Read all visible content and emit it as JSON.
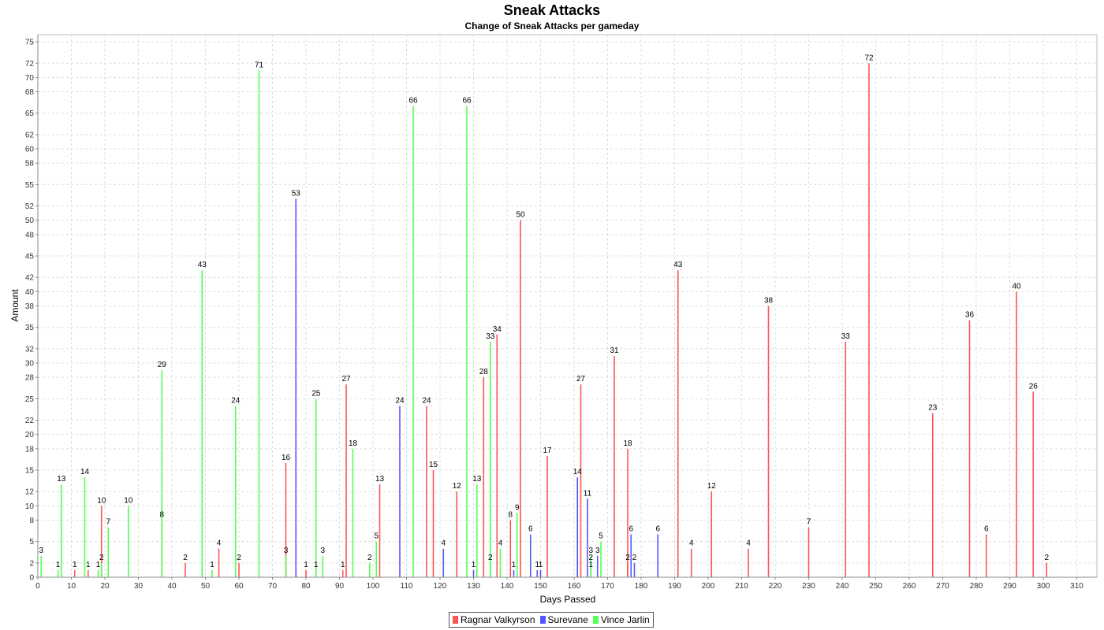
{
  "chart_data": {
    "type": "bar",
    "title": "Sneak Attacks",
    "subtitle": "Change of Sneak Attacks per gameday",
    "xlabel": "Days Passed",
    "ylabel": "Amount",
    "xlim": [
      0,
      316
    ],
    "ylim": [
      0,
      76
    ],
    "x_ticks": [
      0,
      10,
      20,
      30,
      40,
      50,
      60,
      70,
      80,
      90,
      100,
      110,
      120,
      130,
      140,
      150,
      160,
      170,
      180,
      190,
      200,
      210,
      220,
      230,
      240,
      250,
      260,
      270,
      280,
      290,
      300,
      310
    ],
    "y_ticks": [
      0,
      2,
      5,
      8,
      10,
      12,
      15,
      18,
      20,
      22,
      25,
      28,
      30,
      32,
      35,
      38,
      40,
      42,
      45,
      48,
      50,
      52,
      55,
      58,
      60,
      62,
      65,
      68,
      70,
      72,
      75
    ],
    "grid": true,
    "legend_position": "bottom",
    "series": [
      {
        "name": "Ragnar Valkyrson",
        "color": "#ff5555",
        "points": [
          [
            11,
            1
          ],
          [
            15,
            1
          ],
          [
            19,
            10
          ],
          [
            37,
            8
          ],
          [
            44,
            2
          ],
          [
            54,
            4
          ],
          [
            60,
            2
          ],
          [
            74,
            16
          ],
          [
            80,
            1
          ],
          [
            91,
            1
          ],
          [
            92,
            27
          ],
          [
            102,
            13
          ],
          [
            116,
            24
          ],
          [
            118,
            15
          ],
          [
            125,
            12
          ],
          [
            133,
            28
          ],
          [
            137,
            34
          ],
          [
            141,
            8
          ],
          [
            144,
            50
          ],
          [
            152,
            17
          ],
          [
            162,
            27
          ],
          [
            172,
            31
          ],
          [
            176,
            2
          ],
          [
            176,
            18
          ],
          [
            191,
            43
          ],
          [
            195,
            4
          ],
          [
            201,
            12
          ],
          [
            212,
            4
          ],
          [
            218,
            38
          ],
          [
            230,
            7
          ],
          [
            241,
            33
          ],
          [
            248,
            72
          ],
          [
            267,
            23
          ],
          [
            278,
            36
          ],
          [
            283,
            6
          ],
          [
            292,
            40
          ],
          [
            297,
            26
          ],
          [
            301,
            2
          ]
        ]
      },
      {
        "name": "Surevane",
        "color": "#5555ff",
        "points": [
          [
            77,
            53
          ],
          [
            83,
            1
          ],
          [
            108,
            24
          ],
          [
            121,
            4
          ],
          [
            130,
            1
          ],
          [
            135,
            2
          ],
          [
            142,
            1
          ],
          [
            147,
            6
          ],
          [
            149,
            1
          ],
          [
            150,
            1
          ],
          [
            161,
            14
          ],
          [
            164,
            11
          ],
          [
            165,
            2
          ],
          [
            165,
            1
          ],
          [
            167,
            3
          ],
          [
            177,
            6
          ],
          [
            178,
            2
          ],
          [
            185,
            6
          ]
        ]
      },
      {
        "name": "Vince Jarlin",
        "color": "#55ff55",
        "points": [
          [
            1,
            3
          ],
          [
            6,
            1
          ],
          [
            7,
            13
          ],
          [
            14,
            14
          ],
          [
            18,
            1
          ],
          [
            19,
            2
          ],
          [
            21,
            7
          ],
          [
            27,
            10
          ],
          [
            37,
            29
          ],
          [
            49,
            43
          ],
          [
            52,
            1
          ],
          [
            59,
            24
          ],
          [
            66,
            71
          ],
          [
            74,
            3
          ],
          [
            83,
            25
          ],
          [
            85,
            3
          ],
          [
            94,
            18
          ],
          [
            99,
            2
          ],
          [
            101,
            5
          ],
          [
            112,
            66
          ],
          [
            128,
            66
          ],
          [
            131,
            13
          ],
          [
            135,
            33
          ],
          [
            138,
            4
          ],
          [
            143,
            9
          ],
          [
            165,
            3
          ],
          [
            168,
            5
          ]
        ]
      }
    ]
  }
}
